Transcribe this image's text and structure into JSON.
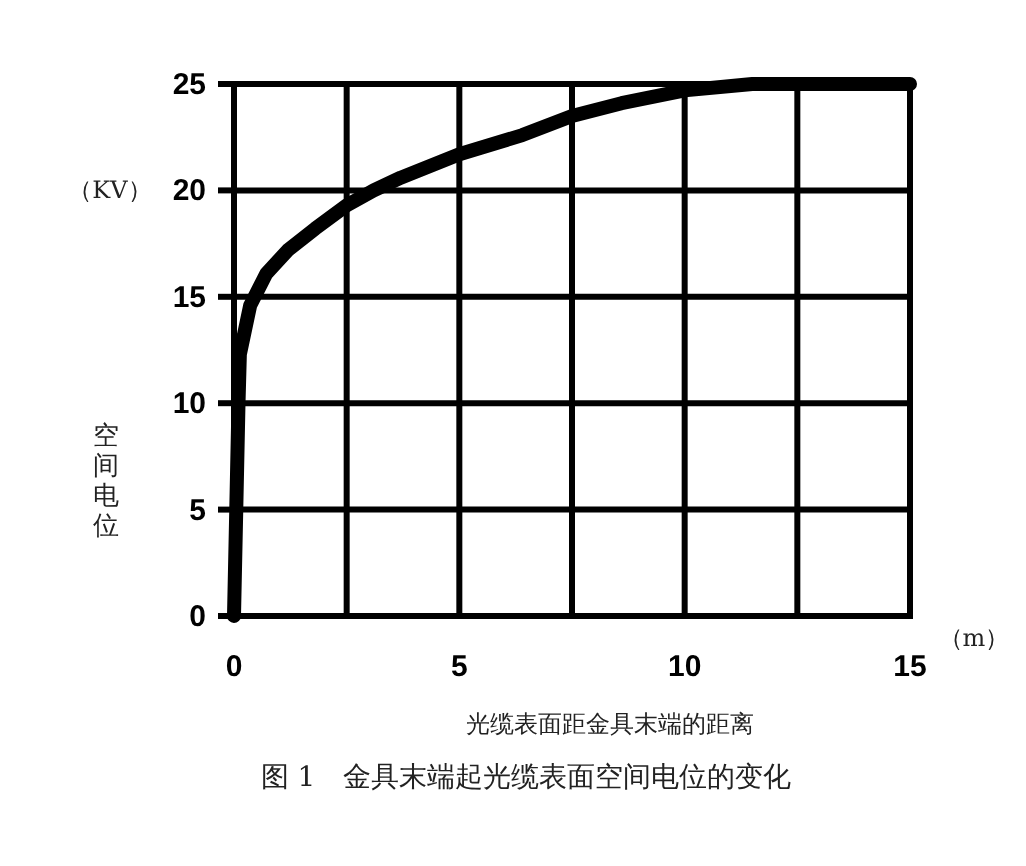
{
  "chart_data": {
    "type": "line",
    "title": "图 1　金具末端起光缆表面空间电位的变化",
    "xlabel": "光缆表面距金具末端的距离",
    "ylabel": "空间电位",
    "annotations": [
      "（KV）",
      "（m）"
    ],
    "x": [
      0,
      0.05,
      0.1,
      0.13,
      0.36,
      0.72,
      1.2,
      1.8,
      2.5,
      3.1,
      3.7,
      5,
      6.4,
      7.5,
      8.6,
      10,
      11.5,
      13,
      15
    ],
    "series": [
      {
        "color": "#000000",
        "values": [
          0,
          5,
          10,
          12.3,
          14.6,
          16.1,
          17.2,
          18.2,
          19.3,
          20,
          20.6,
          21.7,
          22.6,
          23.5,
          24.1,
          24.7,
          25,
          25,
          25
        ]
      }
    ],
    "xlim": [
      0,
      15
    ],
    "ylim": [
      0,
      25
    ],
    "xticks": [
      0,
      {
        "value": 2.5,
        "label": null
      },
      5,
      {
        "value": 7.5,
        "label": null
      },
      10,
      {
        "value": 12.5,
        "label": null
      },
      15
    ],
    "yticks": [
      0,
      5,
      10,
      15,
      20,
      25
    ],
    "grid": true,
    "marker": "none",
    "line_style": "solid"
  }
}
